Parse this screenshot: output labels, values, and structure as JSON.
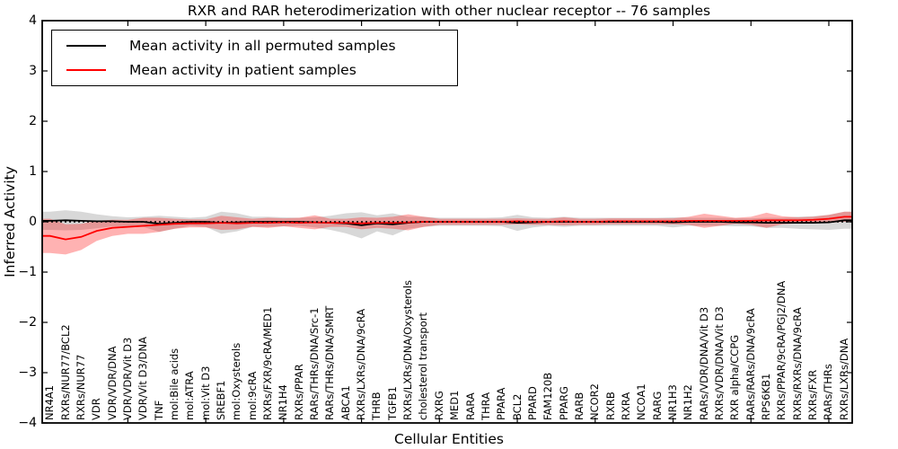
{
  "figure": {
    "title": "RXR and RAR heterodimerization with other nuclear receptor -- 76 samples",
    "xlabel": "Cellular Entities",
    "ylabel": "Inferred Activity"
  },
  "legend": {
    "entries": [
      {
        "label": "Mean activity in all permuted samples",
        "color": "#000000"
      },
      {
        "label": "Mean activity in patient samples",
        "color": "#ff0000"
      }
    ]
  },
  "colors": {
    "permuted_line": "#000000",
    "permuted_band": "#999999",
    "patient_line": "#ff0000",
    "patient_band": "#ff0000",
    "axis": "#000000"
  },
  "chart_data": {
    "type": "line",
    "title": "RXR and RAR heterodimerization with other nuclear receptor -- 76 samples",
    "xlabel": "Cellular Entities",
    "ylabel": "Inferred Activity",
    "ylim": [
      -4,
      4
    ],
    "yticks": [
      4,
      3,
      2,
      1,
      0,
      -1,
      -2,
      -3,
      -4
    ],
    "ytick_labels": [
      "4",
      "3",
      "2",
      "1",
      "0",
      "−1",
      "−2",
      "−3",
      "−4"
    ],
    "xticks": [
      5,
      10,
      15,
      20,
      25,
      30,
      35,
      40,
      45,
      50
    ],
    "grid": false,
    "legend_position": "upper left",
    "zero_line": "dotted",
    "categories": [
      "NR4A1",
      "RXRs/NUR77/BCL2",
      "RXRs/NUR77",
      "VDR",
      "VDR/VDR/DNA",
      "VDR/VDR/Vit D3",
      "VDR/Vit D3/DNA",
      "TNF",
      "mol:Bile acids",
      "mol:ATRA",
      "mol:Vit D3",
      "SREBF1",
      "mol:Oxysterols",
      "mol:9cRA",
      "RXRs/FXR/9cRA/MED1",
      "NR1H4",
      "RXRs/PPAR",
      "RARs/THRs/DNA/Src-1",
      "RARs/THRs/DNA/SMRT",
      "ABCA1",
      "RXRs/LXRs/DNA/9cRA",
      "THRB",
      "TGFB1",
      "RXRs/LXRs/DNA/Oxysterols",
      "cholesterol transport",
      "RXRG",
      "MED1",
      "RARA",
      "THRA",
      "PPARA",
      "BCL2",
      "PPARD",
      "FAM120B",
      "PPARG",
      "RARB",
      "NCOR2",
      "RXRB",
      "RXRA",
      "NCOA1",
      "RARG",
      "NR1H3",
      "NR1H2",
      "RARs/VDR/DNA/Vit D3",
      "RXRs/VDR/DNA/Vit D3",
      "RXR alpha/CCPG",
      "RARs/RARs/DNA/9cRA",
      "RPS6KB1",
      "RXRs/PPAR/9cRA/PGJ2/DNA",
      "RXRs/RXRs/DNA/9cRA",
      "RXRs/FXR",
      "RARs/THRs",
      "RXRs/LXRs/DNA"
    ],
    "series": [
      {
        "name": "Mean activity in all permuted samples",
        "color": "#000000",
        "band_color": "#999999",
        "band_opacity": 0.38,
        "values": [
          0.02,
          0.03,
          0.02,
          0.01,
          0.01,
          0.0,
          0.0,
          -0.04,
          -0.02,
          0.0,
          0.0,
          -0.02,
          -0.01,
          0.0,
          0.0,
          0.0,
          0.0,
          -0.01,
          -0.02,
          -0.03,
          -0.07,
          -0.03,
          -0.05,
          -0.02,
          0.0,
          0.0,
          0.0,
          0.0,
          0.0,
          0.0,
          -0.02,
          -0.01,
          0.0,
          0.0,
          0.0,
          0.0,
          0.0,
          0.0,
          0.0,
          0.0,
          -0.01,
          0.0,
          0.0,
          0.0,
          -0.01,
          -0.01,
          -0.02,
          -0.02,
          -0.02,
          -0.02,
          -0.01,
          0.03
        ],
        "band_halfwidth": [
          0.18,
          0.2,
          0.18,
          0.14,
          0.1,
          0.09,
          0.1,
          0.16,
          0.12,
          0.08,
          0.1,
          0.22,
          0.18,
          0.1,
          0.1,
          0.09,
          0.08,
          0.1,
          0.14,
          0.2,
          0.26,
          0.16,
          0.22,
          0.12,
          0.1,
          0.08,
          0.08,
          0.08,
          0.08,
          0.09,
          0.16,
          0.1,
          0.08,
          0.1,
          0.08,
          0.08,
          0.08,
          0.08,
          0.08,
          0.08,
          0.1,
          0.08,
          0.08,
          0.08,
          0.08,
          0.08,
          0.1,
          0.1,
          0.12,
          0.13,
          0.15,
          0.17
        ]
      },
      {
        "name": "Mean activity in patient samples",
        "color": "#ff0000",
        "band_color": "#ff0000",
        "band_opacity": 0.3,
        "values": [
          -0.28,
          -0.35,
          -0.3,
          -0.18,
          -0.12,
          -0.1,
          -0.08,
          -0.06,
          -0.04,
          -0.03,
          -0.03,
          -0.02,
          -0.03,
          -0.02,
          -0.02,
          -0.01,
          -0.02,
          -0.01,
          -0.02,
          -0.02,
          -0.03,
          -0.02,
          -0.02,
          -0.01,
          0.0,
          0.0,
          0.0,
          0.0,
          0.0,
          0.0,
          0.01,
          0.0,
          0.0,
          0.01,
          0.0,
          0.0,
          0.01,
          0.01,
          0.01,
          0.01,
          0.01,
          0.02,
          0.02,
          0.02,
          0.02,
          0.02,
          0.03,
          0.03,
          0.03,
          0.04,
          0.06,
          0.1
        ],
        "band_halfwidth": [
          0.34,
          0.3,
          0.26,
          0.2,
          0.16,
          0.14,
          0.16,
          0.14,
          0.1,
          0.08,
          0.08,
          0.14,
          0.12,
          0.08,
          0.1,
          0.08,
          0.1,
          0.14,
          0.08,
          0.08,
          0.12,
          0.1,
          0.12,
          0.16,
          0.1,
          0.06,
          0.06,
          0.06,
          0.06,
          0.06,
          0.06,
          0.06,
          0.06,
          0.08,
          0.06,
          0.06,
          0.06,
          0.06,
          0.06,
          0.06,
          0.06,
          0.08,
          0.14,
          0.1,
          0.06,
          0.08,
          0.15,
          0.08,
          0.06,
          0.06,
          0.08,
          0.1
        ]
      }
    ]
  }
}
